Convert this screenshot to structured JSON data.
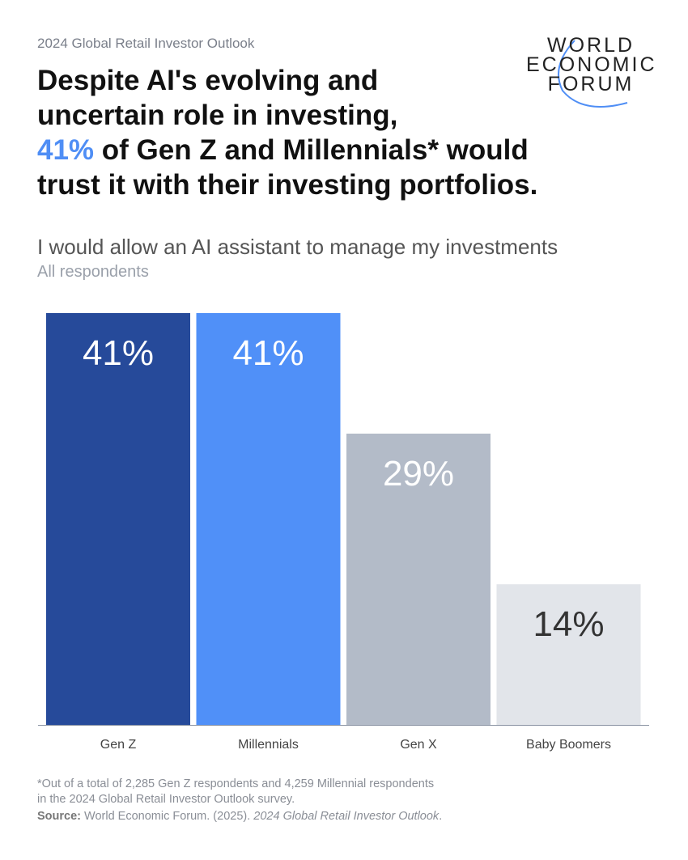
{
  "kicker": "2024 Global Retail Investor Outlook",
  "headline": {
    "line1": "Despite AI's evolving and",
    "line2": "uncertain role in investing,",
    "highlight": "41%",
    "line3_rest": " of Gen Z and Millennials* would",
    "line4": "trust it with their investing portfolios."
  },
  "logo": {
    "line1": "WORLD",
    "line2": "ECONOMIC",
    "line3": "FORUM"
  },
  "colors": {
    "accent": "#4f8ef5",
    "gen_z": "#264a9a",
    "millennials": "#5090f8",
    "gen_x": "#b3bbc8",
    "baby_boomers": "#e2e5ea"
  },
  "chart_data": {
    "type": "bar",
    "title": "I would allow an AI assistant to manage my investments",
    "subtitle": "All respondents",
    "categories": [
      "Gen Z",
      "Millennials",
      "Gen X",
      "Baby Boomers"
    ],
    "values": [
      41,
      41,
      29,
      14
    ],
    "data_labels": [
      "41%",
      "41%",
      "29%",
      "14%"
    ],
    "ylim": [
      0,
      41
    ],
    "grid": false
  },
  "footnote": {
    "line1": "*Out of a total of 2,285 Gen Z respondents and 4,259 Millennial respondents",
    "line2": "in the 2024 Global Retail Investor Outlook survey.",
    "source_label": "Source:",
    "source_text": " World Economic Forum. (2025). ",
    "source_title": "2024 Global Retail Investor Outlook",
    "source_end": "."
  }
}
